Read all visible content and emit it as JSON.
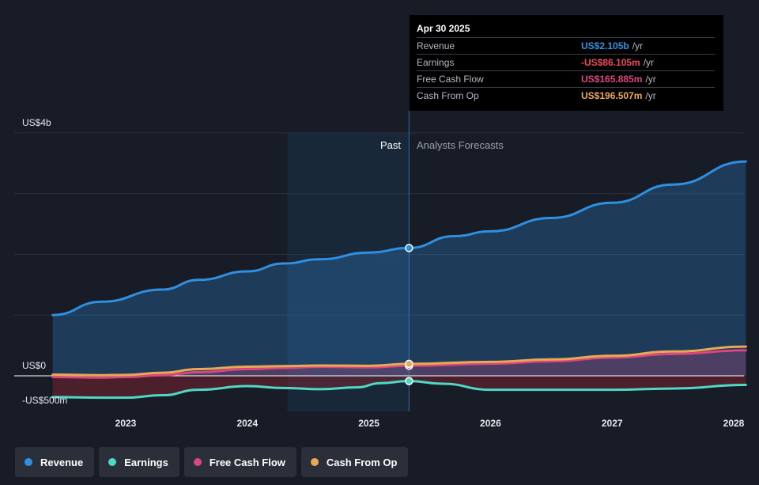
{
  "tooltip": {
    "date": "Apr 30 2025",
    "rows": [
      {
        "label": "Revenue",
        "value": "US$2.105b",
        "unit": "/yr",
        "color": "#2f8fe0"
      },
      {
        "label": "Earnings",
        "value": "-US$86.105m",
        "unit": "/yr",
        "color": "#ef4a59"
      },
      {
        "label": "Free Cash Flow",
        "value": "US$165.885m",
        "unit": "/yr",
        "color": "#d9477e"
      },
      {
        "label": "Cash From Op",
        "value": "US$196.507m",
        "unit": "/yr",
        "color": "#e8a954"
      }
    ]
  },
  "regions": {
    "past": "Past",
    "forecast": "Analysts Forecasts"
  },
  "legend": [
    {
      "label": "Revenue",
      "color": "#2f8fe0"
    },
    {
      "label": "Earnings",
      "color": "#4fd8c4"
    },
    {
      "label": "Free Cash Flow",
      "color": "#d9477e"
    },
    {
      "label": "Cash From Op",
      "color": "#e8a954"
    }
  ],
  "chart_data": {
    "type": "line",
    "y_tick_labels": [
      "US$4b",
      "US$0",
      "-US$500m"
    ],
    "y_ticks": [
      4000,
      0,
      -500
    ],
    "ylim": [
      -700,
      4300
    ],
    "xlim": [
      2022.35,
      2028.1
    ],
    "x_ticks": [
      2023,
      2024,
      2025,
      2026,
      2027,
      2028
    ],
    "x_tick_labels": [
      "2023",
      "2024",
      "2025",
      "2026",
      "2027",
      "2028"
    ],
    "past_shade_start": 2024.33,
    "divider_x": 2025.33,
    "grid": true,
    "series": [
      {
        "name": "Revenue",
        "color": "#2f8fe0",
        "fill": true,
        "x": [
          2022.4,
          2022.8,
          2023.3,
          2023.6,
          2024.0,
          2024.3,
          2024.6,
          2025.0,
          2025.33,
          2025.7,
          2026.0,
          2026.5,
          2027.0,
          2027.5,
          2028.1
        ],
        "y": [
          1000,
          1220,
          1420,
          1580,
          1720,
          1850,
          1920,
          2030,
          2105,
          2300,
          2380,
          2600,
          2850,
          3150,
          3530
        ]
      },
      {
        "name": "Earnings",
        "color": "#4fd8c4",
        "fill": false,
        "x": [
          2022.4,
          2022.8,
          2023.0,
          2023.3,
          2023.6,
          2024.0,
          2024.3,
          2024.6,
          2024.9,
          2025.1,
          2025.33,
          2025.6,
          2026.0,
          2026.5,
          2027.0,
          2027.5,
          2028.1
        ],
        "y": [
          -350,
          -360,
          -360,
          -320,
          -230,
          -170,
          -200,
          -220,
          -190,
          -120,
          -86,
          -130,
          -230,
          -230,
          -230,
          -210,
          -150
        ]
      },
      {
        "name": "Free Cash Flow",
        "color": "#d9477e",
        "fill": true,
        "x": [
          2022.4,
          2022.8,
          2023.0,
          2023.3,
          2023.6,
          2024.0,
          2024.3,
          2024.6,
          2025.0,
          2025.33,
          2026.0,
          2026.5,
          2027.0,
          2027.5,
          2028.1
        ],
        "y": [
          -20,
          -30,
          -20,
          10,
          60,
          110,
          130,
          150,
          140,
          166,
          200,
          240,
          300,
          360,
          420
        ]
      },
      {
        "name": "Cash From Op",
        "color": "#e8a954",
        "fill": false,
        "x": [
          2022.4,
          2022.8,
          2023.0,
          2023.3,
          2023.6,
          2024.0,
          2024.3,
          2024.6,
          2025.0,
          2025.33,
          2026.0,
          2026.5,
          2027.0,
          2027.5,
          2028.1
        ],
        "y": [
          20,
          10,
          15,
          50,
          110,
          150,
          160,
          170,
          165,
          197,
          230,
          270,
          330,
          400,
          480
        ]
      }
    ]
  }
}
